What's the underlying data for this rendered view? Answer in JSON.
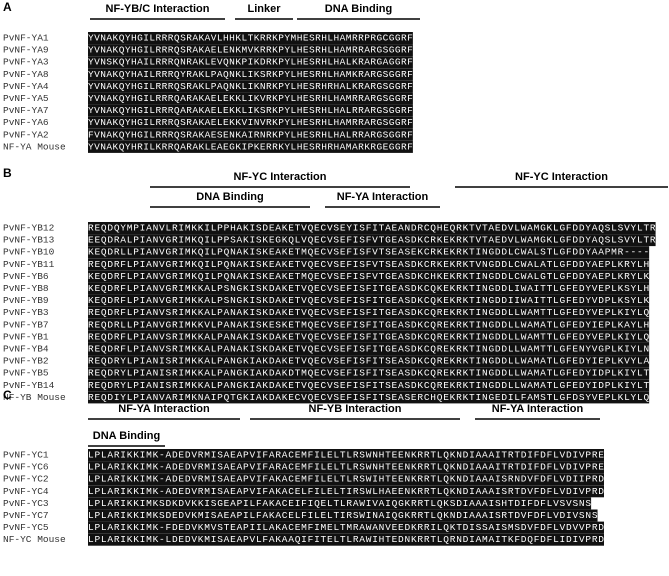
{
  "panels": [
    {
      "letter": "A",
      "headers": [
        "NF-YB/C Interaction",
        "Linker",
        "DNA Binding"
      ],
      "rows": [
        {
          "name": "PvNF-YA1",
          "sequence": "YVNAKQYHGILRRRQSRAKAVLHHKLTKRRKPYMHESRHLHAMRRPRGCGGRF"
        },
        {
          "name": "PvNF-YA9",
          "sequence": "YVNAKQYHGILRRRQSRAKAELENKMVKRRKPYLHESRHLHAMRRARGSGGRF"
        },
        {
          "name": "PvNF-YA3",
          "sequence": "YVNSKQYHAILRRRQNRAKLEVQNKPIKDRKPYLHESRHLHALKRARGAGGRF"
        },
        {
          "name": "PvNF-YA8",
          "sequence": "YVNAKQYHAILRRRQYRAKLPAQNKLIKSRKPYLHESRHLHAMKRARGSGGRF"
        },
        {
          "name": "PvNF-YA4",
          "sequence": "YVNAKQYHGILRRRQSRAKLPAQNKLIKNRKPYLHESRHRHALKRARGSGGRF"
        },
        {
          "name": "PvNF-YA5",
          "sequence": "YVNAKQYHGILRRRQARAKAELEKKLIKVRKPYLHESRHLHAMRRARGSGGRF"
        },
        {
          "name": "PvNF-YA7",
          "sequence": "YVNAKQYHGILRRRQARAKAELEKKLIKSRKPYLHESRHLHALRRARGSGGRF"
        },
        {
          "name": "PvNF-YA6",
          "sequence": "YVNAKQYHGILRRRQSRAKAELEKKVINVRKPYLHESRHLHAMRRARGSGGRF"
        },
        {
          "name": "PvNF-YA2",
          "sequence": "FVNAKQYHGILRRRQSRAKAESENKAIRNRKPYLHESRHLHALRRARGSGGRF"
        },
        {
          "name": "NF-YA Mouse",
          "sequence": "YVNAKQYHRILKRRQARAKLEAEGKIPKERRKYLHESRHRHAMARKRGEGGRF"
        }
      ]
    },
    {
      "letter": "B",
      "headers": [
        "NF-YC Interaction",
        "NF-YC Interaction",
        "DNA Binding",
        "NF-YA Interaction"
      ],
      "rows": [
        {
          "name": "PvNF-YB12",
          "sequence": "REQDQYMPIANVLRIMKKILPPHAKISDEAKETVQECVSEYISFITAEANDRCQHEQRKTVTAEDVLWAMGKLGFDDYAQSLSVYLTR"
        },
        {
          "name": "PvNF-YB13",
          "sequence": "EEQDRALPIANVGRIMKQILPPSAKISKEGKQLVQECVSEFISFVTGEASDKCRKEKRKTVTAEDVLWAMGKLGFDDYAQSLSVYLTR"
        },
        {
          "name": "PvNF-YB10",
          "sequence": "KEQDRLLPIANVGRIMKQILPQNAKISKEAKETMQECVSEFISFVTSEASEKCRKEKRKTINGDDLCWALSTLGFDDYAAPMR----"
        },
        {
          "name": "PvNF-YB11",
          "sequence": "REQDRFLPIANVGRIMKQILPQNAKISKEAKETVQECVSEFISFVTSEASDKCRKEKRKTVNGDDLCWALATLGFDDYAEPLKRYLH"
        },
        {
          "name": "PvNF-YB6",
          "sequence": "KEQDRFLPIANVGRIMKQILPQNAKISKEAKETMQECVSEFISFVTGEASDKCHKEKRKTINGDDLCWALGTLGFDDYAEPLKRYLK"
        },
        {
          "name": "PvNF-YB8",
          "sequence": "KEQDRFLPIANVGRIMKKALPSNGKISKDAKETVQECVSEFISFITGEASDKCQKEKRKTINGDDLIWAITTLGFEDYVEPLKSYLH"
        },
        {
          "name": "PvNF-YB9",
          "sequence": "KEQDRFLPIANVGRIMKKALPSNGKISKDAKETVQECVSEFISFITGEASDKCQKEKRKTINGDDIIWAITTLGFEDYVDPLKSYLK"
        },
        {
          "name": "PvNF-YB3",
          "sequence": "REQDRFLPIANVSRIMKKALPANAKISKDAKETVQECVSEFISFITGEASDKCQREKRKTINGDDLLWAMTTLGFEDYVEPLKIYLQ"
        },
        {
          "name": "PvNF-YB7",
          "sequence": "REQDRLLPIANVGRIMKKVLPANAKISKESKETMQECVSEFISFITGEASDKCQREKRKTINGDDLLWAMATLGFEDYIEPLKAYLH"
        },
        {
          "name": "PvNF-YB1",
          "sequence": "REQDRFLPIANVSRIMKKALPANAKISKDAKETVQECVSEFISFITGEASDKCQREKRKTINGDDLLWAMTTLGFEDYVEPLKIYLQ"
        },
        {
          "name": "PvNF-YB4",
          "sequence": "REQDRFLPIANVSRIMKKALPANAKISKDAKETVQECVSEFISFITGEASDKCQREKRKTINGDDLLWAMTTLGFENYVGPLKIYLN"
        },
        {
          "name": "PvNF-YB2",
          "sequence": "REQDRYLPIANISRIMKKALPANGKIAKDAKETVQECVSEFISFITSEASDKCQREKRKTINGDDLLWAMATLGFEDYIEPLKVYLA"
        },
        {
          "name": "PvNF-YB5",
          "sequence": "REQDRYLPIANISRIMKKALPANGKIAKDAKDTMQECVSEFISFITSEASDKCQREKRKTINGDDLLWAMATLGFEDYIDPLKIYLT"
        },
        {
          "name": "PvNF-YB14",
          "sequence": "REQDRYLPIANISRIMKKALPANGKIAKDAKETVQECVSEFISFITSEASDKCQREKRKTINGDDLLWAMATLGFEDYIDPLKIYLT"
        },
        {
          "name": "NF-YB Mouse",
          "sequence": "REQDIYLPIANVARIMKNAIPQTGKIAKDAKECVQECVSEFISFITSEASERCHQEKRKTINGEDILFAMSTLGFDSYVEPLKLYLQ"
        }
      ]
    },
    {
      "letter": "C",
      "headers": [
        "NF-YA Interaction",
        "NF-YB Interaction",
        "NF-YA Interaction",
        "DNA Binding"
      ],
      "rows": [
        {
          "name": "PvNF-YC1",
          "sequence": "LPLARIKKIMK-ADEDVRMISAEAPVIFARACEMFILELTLRSWNHTEENKRRTLQKNDIAAAITRTDIFDFLVDIVPRE"
        },
        {
          "name": "PvNF-YC6",
          "sequence": "LPLARIKKIMK-ADEDVRMISAEAPVIFARACEMFILELTLRSWNHTEENKRRTLQKNDIAAAITRTDIFDFLVDIVPRE"
        },
        {
          "name": "PvNF-YC2",
          "sequence": "LPLARIKKIMK-ADEDVRMISAEAPVIFAKACEMFILELTLRSWIHTEENKRRTLQKNDIAAAISRNDVFDFLVDIIPRD"
        },
        {
          "name": "PvNF-YC4",
          "sequence": "LPLARIKKIMK-ADEDVRMISAEAPVIFAKACELFILELTIRSWLHAEENKRRTLQKNDIAAAISRTDVFDFLVDIVPRD"
        },
        {
          "name": "PvNF-YC3",
          "sequence": "LPLARIKKIMKSDKDVKKISGEAPILFAKACEIFIQELTLRAWIVAIQGKRRTLQKSDIAAAISHTDIFDFLVSVSNS"
        },
        {
          "name": "PvNF-YC7",
          "sequence": "LPLARIKKIMKSDEDVKMISAEAPILFAKACELFILELTIRSWINAIQGKRRTLQKNDIAAAISRTDVFDFLVDIVSNS"
        },
        {
          "name": "PvNF-YC5",
          "sequence": "LPLARIKKIMK-FDEDVKMVSTEAPIILAKACEMFIMELTMRAWANVEEDKRRILQKTDISSAISMSDVFDFLVDVVPRD"
        },
        {
          "name": "NF-YC Mouse",
          "sequence": "LPLARIKKIMK-LDEDVKMISAEAPVLFAKAAQIFITELTLRAWIHTEDNKRRTLQRNDIAMAITKFDQFDFLIDIVPRD"
        }
      ]
    }
  ]
}
